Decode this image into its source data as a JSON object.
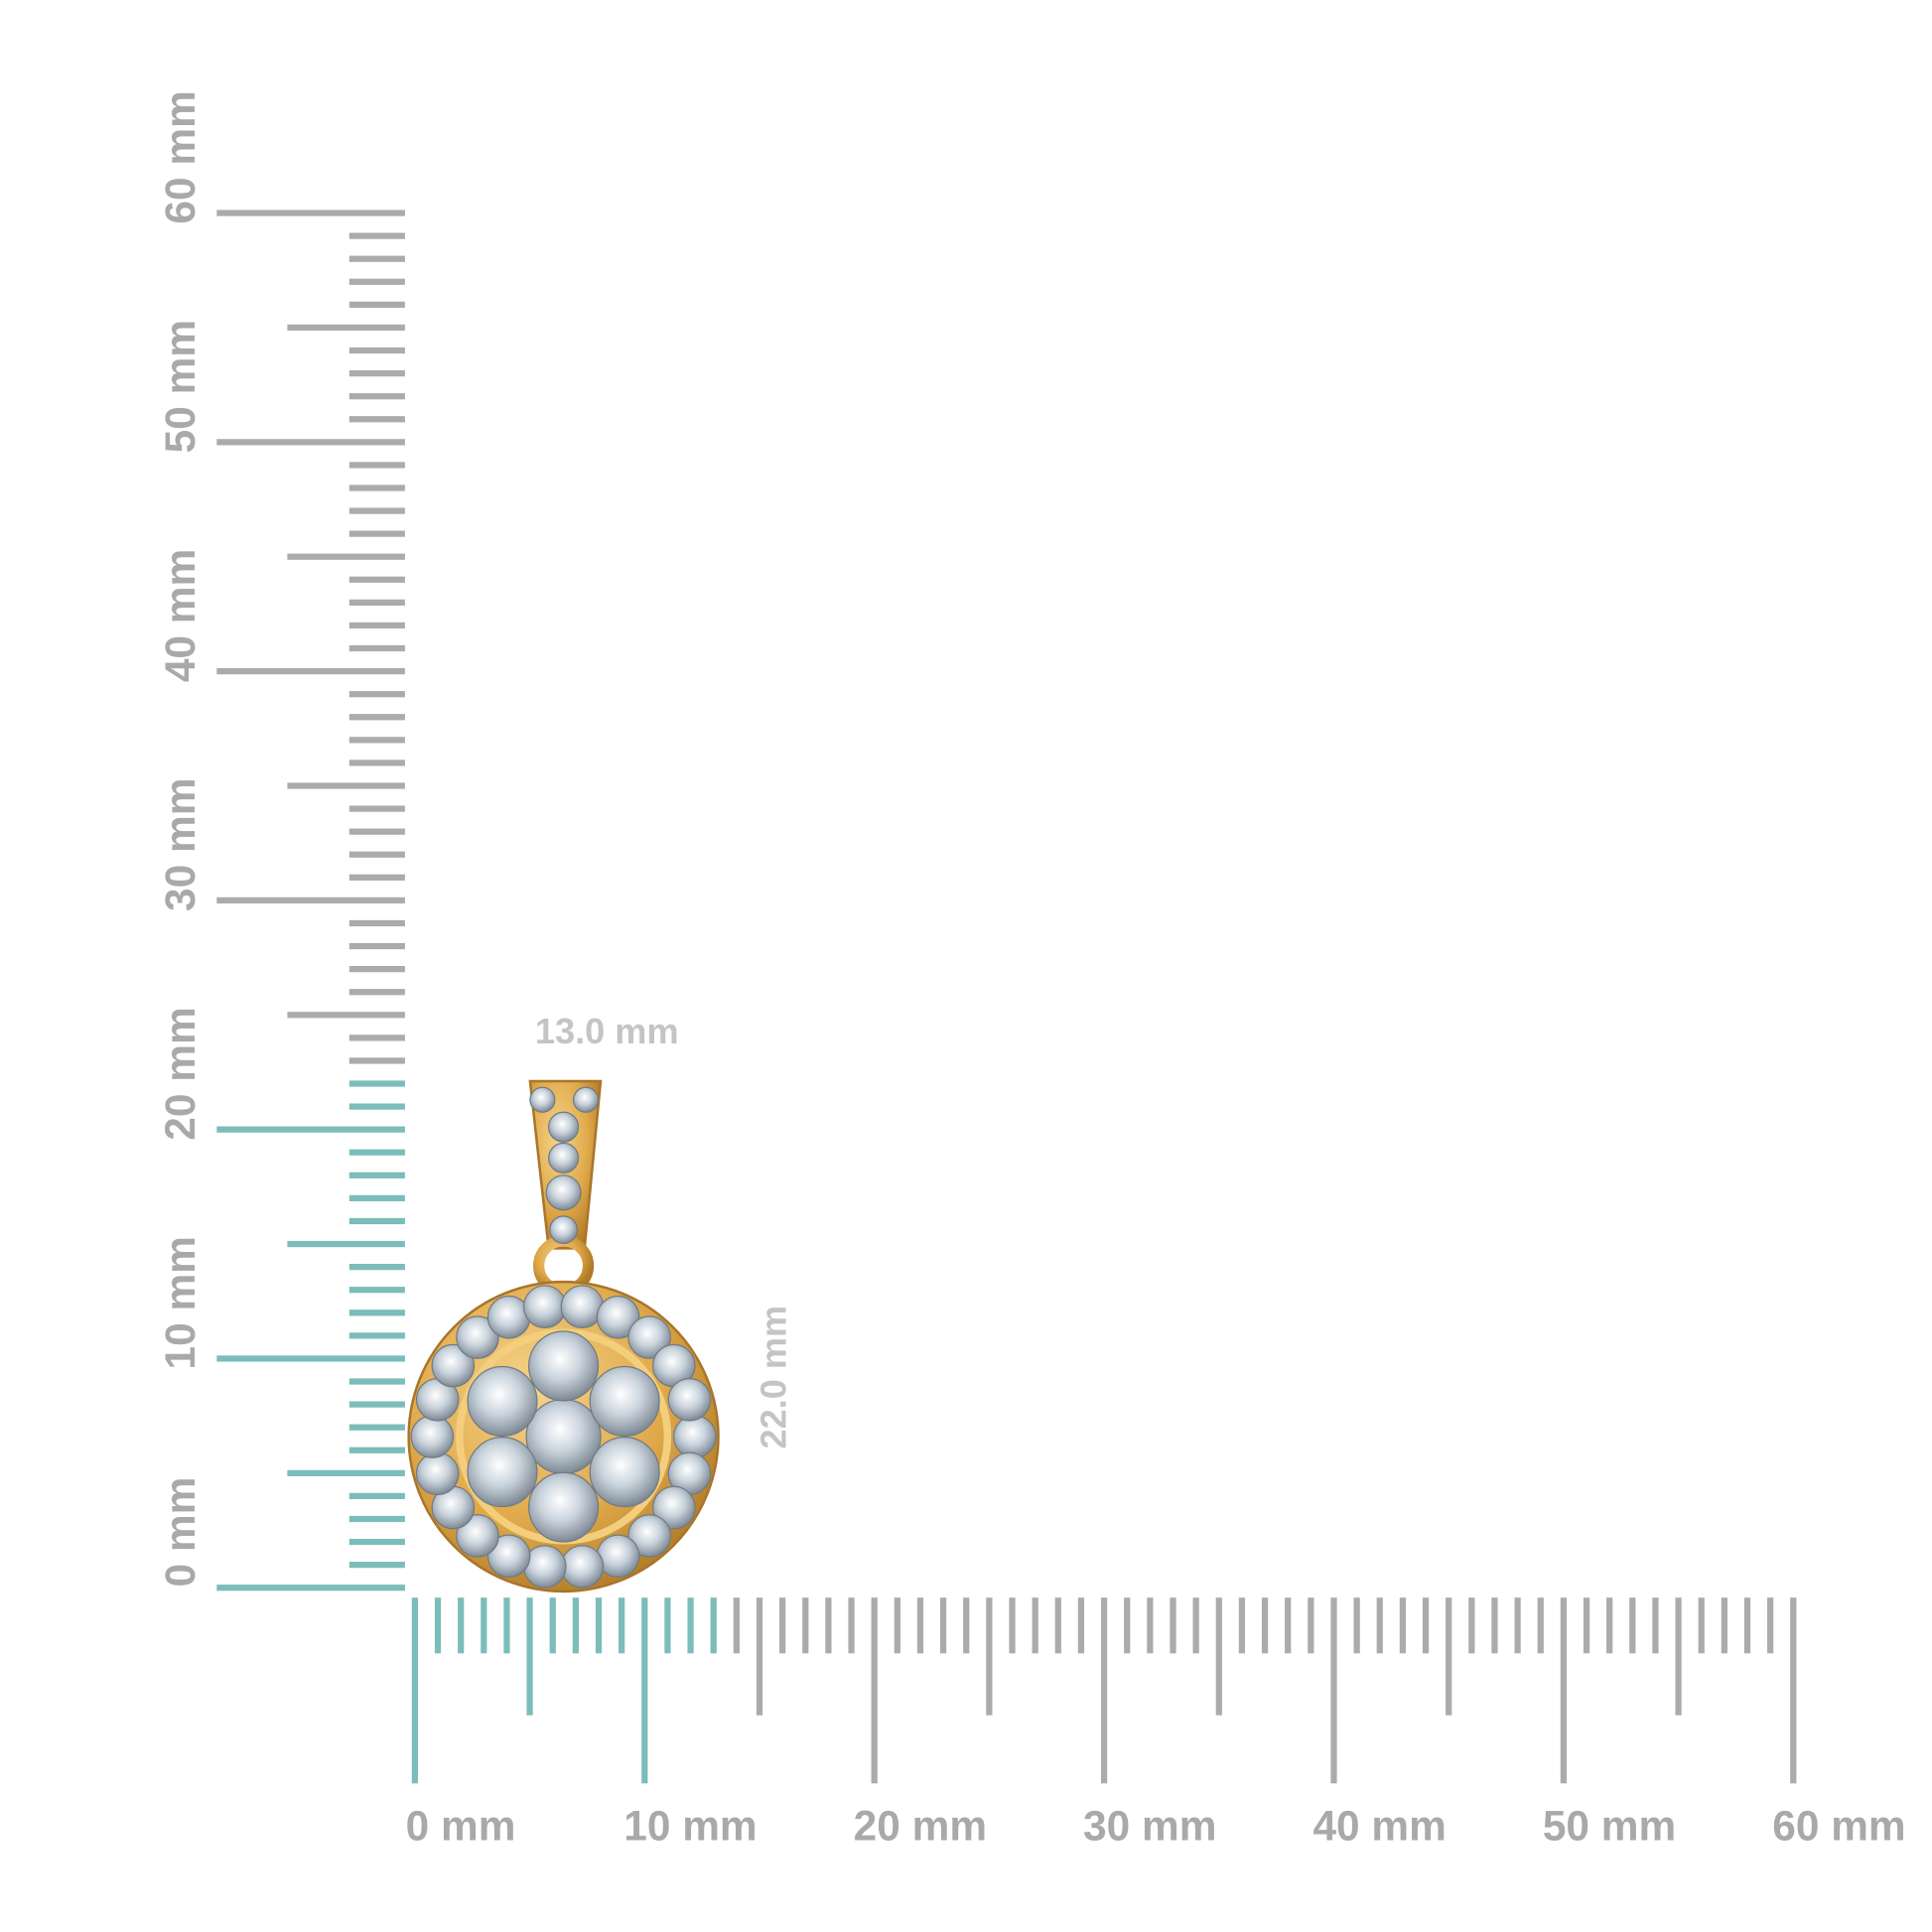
{
  "horizontal_ruler": {
    "labels": [
      "0 mm",
      "10 mm",
      "20 mm",
      "30 mm",
      "40 mm",
      "50 mm",
      "60 mm"
    ]
  },
  "vertical_ruler": {
    "labels": [
      "0 mm",
      "10 mm",
      "20 mm",
      "30 mm",
      "40 mm",
      "50 mm",
      "60 mm"
    ]
  },
  "dimensions": {
    "width": {
      "value": 13,
      "label": "13.0 mm"
    },
    "height": {
      "value": 22,
      "label": "22.0 mm"
    }
  }
}
